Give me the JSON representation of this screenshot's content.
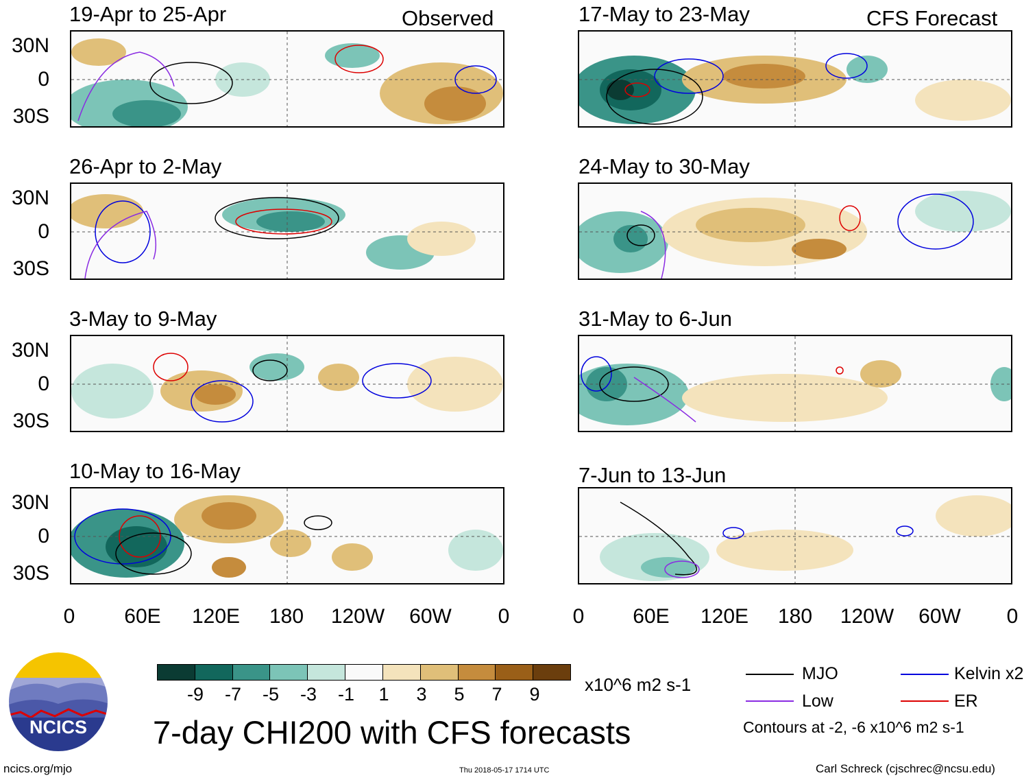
{
  "observed_label": "Observed",
  "forecast_label": "CFS Forecast",
  "panels": {
    "p1": "19-Apr to 25-Apr",
    "p2": "26-Apr to 2-May",
    "p3": "3-May to 9-May",
    "p4": "10-May to 16-May",
    "p5": "17-May to 23-May",
    "p6": "24-May to 30-May",
    "p7": "31-May to 6-Jun",
    "p8": "7-Jun to 13-Jun"
  },
  "lat_labels": {
    "north": "30N",
    "equator": "0",
    "south": "30S"
  },
  "lon_labels": [
    "0",
    "60E",
    "120E",
    "180",
    "120W",
    "60W",
    "0"
  ],
  "colorbar": {
    "colors": [
      "#0b3b33",
      "#12675c",
      "#3a9488",
      "#7cc4b7",
      "#c5e6dc",
      "#f9f9f9",
      "#f4e3bc",
      "#e0bf79",
      "#c58c3d",
      "#9a5f18",
      "#6b3e0d"
    ],
    "ticks": [
      "-9",
      "-7",
      "-5",
      "-3",
      "-1",
      "1",
      "3",
      "5",
      "7",
      "9"
    ],
    "units": "x10^6 m2 s-1"
  },
  "legend": {
    "mjo": {
      "label": "MJO",
      "color": "#000000"
    },
    "low": {
      "label": "Low",
      "color": "#8a2be2"
    },
    "kelvin": {
      "label": "Kelvin x2",
      "color": "#0000dd"
    },
    "er": {
      "label": "ER",
      "color": "#dd0000"
    },
    "contours_note": "Contours at -2, -6 x10^6 m2 s-1"
  },
  "main_title": "7-day CHI200 with CFS forecasts",
  "logo_text": "NCICS",
  "footer": {
    "url": "ncics.org/mjo",
    "timestamp": "Thu 2018-05-17 1714 UTC",
    "credit": "Carl Schreck (cjschrec@ncsu.edu)"
  }
}
